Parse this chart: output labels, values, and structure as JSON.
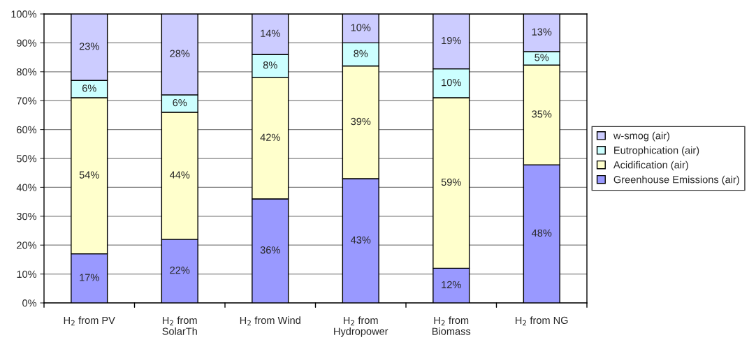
{
  "chart_data": {
    "type": "bar",
    "stacked": true,
    "categories": [
      "H$_{2}$ from PV",
      "H$_{2}$ from\nSolarTh",
      "H$_{2}$ from Wind",
      "H$_{2}$ from\nHydropower",
      "H$_{2}$ from\nBiomass",
      "H$_{2}$ from NG"
    ],
    "series": [
      {
        "name": "Greenhouse Emissions (air)",
        "color": "#9999ff",
        "values": [
          17,
          22,
          36,
          43,
          12,
          47.8
        ],
        "value_labels": [
          "17%",
          "22%",
          "36%",
          "43%",
          "12%",
          "48%"
        ]
      },
      {
        "name": "Acidification (air)",
        "color": "#ffffcc",
        "values": [
          54,
          44,
          42,
          39,
          59,
          34.5
        ],
        "value_labels": [
          "54%",
          "44%",
          "42%",
          "39%",
          "59%",
          "35%"
        ]
      },
      {
        "name": "Eutrophication (air)",
        "color": "#ccffff",
        "values": [
          6,
          6,
          8,
          8,
          10,
          4.7
        ],
        "value_labels": [
          "6%",
          "6%",
          "8%",
          "8%",
          "10%",
          "5%"
        ]
      },
      {
        "name": "w-smog (air)",
        "color": "#ccccff",
        "values": [
          23,
          28,
          14,
          10,
          19,
          13.0
        ],
        "value_labels": [
          "23%",
          "28%",
          "14%",
          "10%",
          "19%",
          "13%"
        ]
      }
    ],
    "ylim": [
      0,
      100
    ],
    "yticks": [
      {
        "value": 0,
        "label": "0%"
      },
      {
        "value": 10,
        "label": "10%"
      },
      {
        "value": 20,
        "label": "20%"
      },
      {
        "value": 30,
        "label": "30%"
      },
      {
        "value": 40,
        "label": "40%"
      },
      {
        "value": 50,
        "label": "50%"
      },
      {
        "value": 60,
        "label": "60%"
      },
      {
        "value": 70,
        "label": "70%"
      },
      {
        "value": 80,
        "label": "80%"
      },
      {
        "value": 90,
        "label": "90%"
      },
      {
        "value": 100,
        "label": "100%"
      }
    ],
    "grid": "y",
    "legend": "right"
  }
}
